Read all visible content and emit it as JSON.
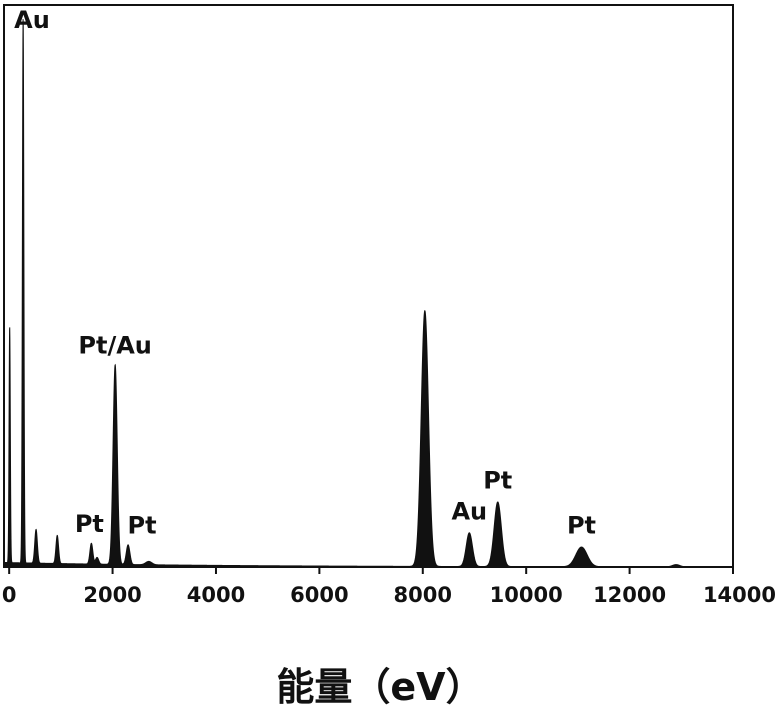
{
  "chart_data": {
    "type": "area",
    "title": "",
    "xlabel": "能量（eV）",
    "ylabel": "",
    "xlim": [
      -100,
      14000
    ],
    "ylim": [
      0,
      1.0
    ],
    "x_ticks": [
      0,
      2000,
      4000,
      6000,
      8000,
      10000,
      12000,
      14000
    ],
    "grid": false,
    "legend": "none",
    "fill_color": "#111111",
    "series": [
      {
        "peaks": [
          {
            "x": 10,
            "height": 0.42,
            "width": 12
          },
          {
            "x": 270,
            "height": 0.97,
            "width": 14
          },
          {
            "x": 520,
            "height": 0.06,
            "width": 25
          },
          {
            "x": 930,
            "height": 0.05,
            "width": 25
          },
          {
            "x": 1590,
            "height": 0.037,
            "width": 28
          },
          {
            "x": 1700,
            "height": 0.012,
            "width": 30
          },
          {
            "x": 2050,
            "height": 0.355,
            "width": 40
          },
          {
            "x": 2300,
            "height": 0.035,
            "width": 35
          },
          {
            "x": 2700,
            "height": 0.006,
            "width": 60
          },
          {
            "x": 8040,
            "height": 0.455,
            "width": 70
          },
          {
            "x": 8900,
            "height": 0.06,
            "width": 60
          },
          {
            "x": 9450,
            "height": 0.115,
            "width": 70
          },
          {
            "x": 11070,
            "height": 0.035,
            "width": 110
          },
          {
            "x": 12900,
            "height": 0.004,
            "width": 70
          }
        ],
        "baseline": 0.008
      }
    ],
    "annotations": [
      {
        "text": "Au",
        "x": 270,
        "y": 0.97
      },
      {
        "text": "Pt/Au",
        "x": 2050,
        "y": 0.355
      },
      {
        "text": "Pt",
        "x": 1590,
        "y": 0.037
      },
      {
        "text": "Pt",
        "x": 2300,
        "y": 0.035
      },
      {
        "text": "Au",
        "x": 8900,
        "y": 0.06
      },
      {
        "text": "Pt",
        "x": 9450,
        "y": 0.115
      },
      {
        "text": "Pt",
        "x": 11070,
        "y": 0.035
      }
    ]
  }
}
